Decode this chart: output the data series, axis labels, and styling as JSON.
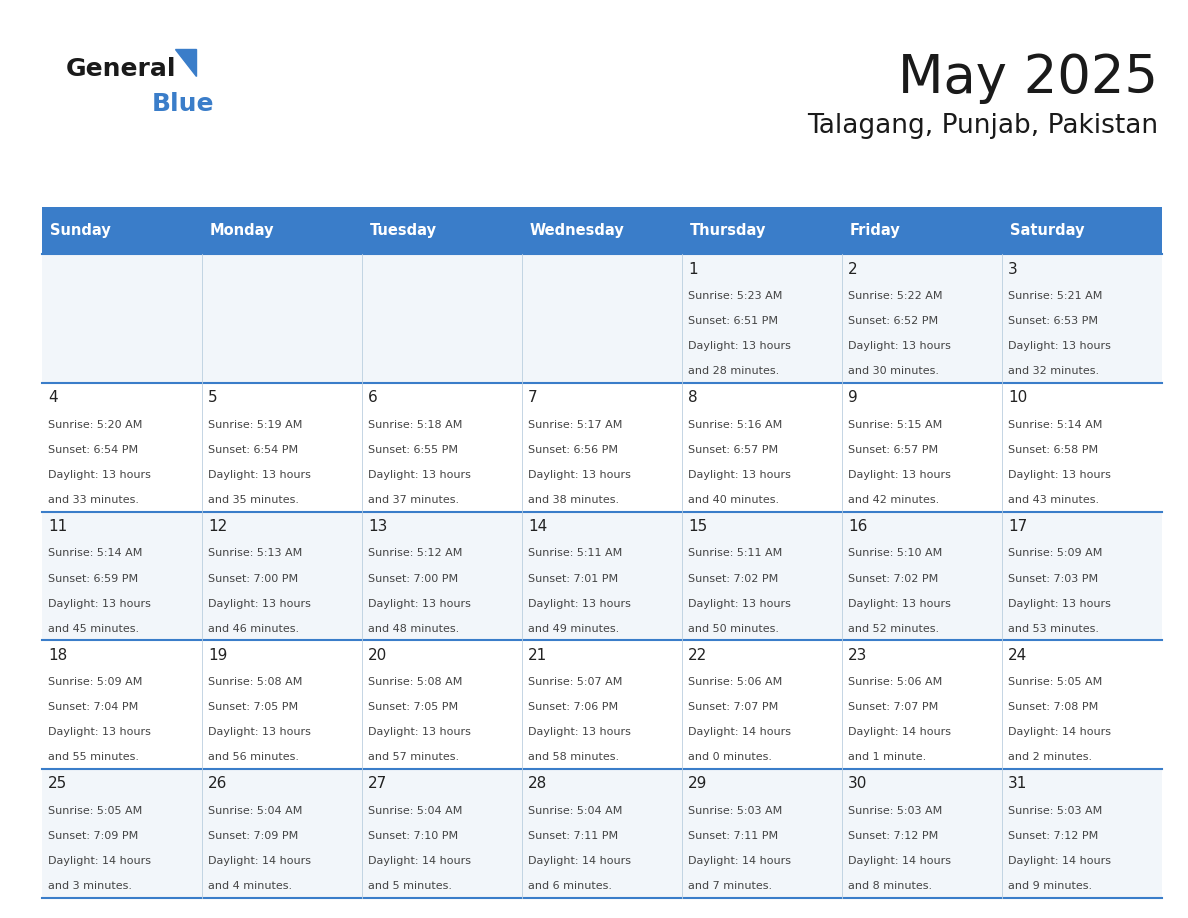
{
  "title": "May 2025",
  "subtitle": "Talagang, Punjab, Pakistan",
  "header_bg_color": "#3A7DC9",
  "header_text_color": "#FFFFFF",
  "cell_text_color": "#444444",
  "day_number_color": "#222222",
  "separator_color": "#3A7DC9",
  "logo_general_color": "#1a1a1a",
  "logo_blue_color": "#3A7DC9",
  "title_color": "#1a1a1a",
  "days_of_week": [
    "Sunday",
    "Monday",
    "Tuesday",
    "Wednesday",
    "Thursday",
    "Friday",
    "Saturday"
  ],
  "calendar_data": [
    [
      {
        "day": "",
        "sunrise": "",
        "sunset": "",
        "daylight_line1": "",
        "daylight_line2": ""
      },
      {
        "day": "",
        "sunrise": "",
        "sunset": "",
        "daylight_line1": "",
        "daylight_line2": ""
      },
      {
        "day": "",
        "sunrise": "",
        "sunset": "",
        "daylight_line1": "",
        "daylight_line2": ""
      },
      {
        "day": "",
        "sunrise": "",
        "sunset": "",
        "daylight_line1": "",
        "daylight_line2": ""
      },
      {
        "day": "1",
        "sunrise": "Sunrise: 5:23 AM",
        "sunset": "Sunset: 6:51 PM",
        "daylight_line1": "Daylight: 13 hours",
        "daylight_line2": "and 28 minutes."
      },
      {
        "day": "2",
        "sunrise": "Sunrise: 5:22 AM",
        "sunset": "Sunset: 6:52 PM",
        "daylight_line1": "Daylight: 13 hours",
        "daylight_line2": "and 30 minutes."
      },
      {
        "day": "3",
        "sunrise": "Sunrise: 5:21 AM",
        "sunset": "Sunset: 6:53 PM",
        "daylight_line1": "Daylight: 13 hours",
        "daylight_line2": "and 32 minutes."
      }
    ],
    [
      {
        "day": "4",
        "sunrise": "Sunrise: 5:20 AM",
        "sunset": "Sunset: 6:54 PM",
        "daylight_line1": "Daylight: 13 hours",
        "daylight_line2": "and 33 minutes."
      },
      {
        "day": "5",
        "sunrise": "Sunrise: 5:19 AM",
        "sunset": "Sunset: 6:54 PM",
        "daylight_line1": "Daylight: 13 hours",
        "daylight_line2": "and 35 minutes."
      },
      {
        "day": "6",
        "sunrise": "Sunrise: 5:18 AM",
        "sunset": "Sunset: 6:55 PM",
        "daylight_line1": "Daylight: 13 hours",
        "daylight_line2": "and 37 minutes."
      },
      {
        "day": "7",
        "sunrise": "Sunrise: 5:17 AM",
        "sunset": "Sunset: 6:56 PM",
        "daylight_line1": "Daylight: 13 hours",
        "daylight_line2": "and 38 minutes."
      },
      {
        "day": "8",
        "sunrise": "Sunrise: 5:16 AM",
        "sunset": "Sunset: 6:57 PM",
        "daylight_line1": "Daylight: 13 hours",
        "daylight_line2": "and 40 minutes."
      },
      {
        "day": "9",
        "sunrise": "Sunrise: 5:15 AM",
        "sunset": "Sunset: 6:57 PM",
        "daylight_line1": "Daylight: 13 hours",
        "daylight_line2": "and 42 minutes."
      },
      {
        "day": "10",
        "sunrise": "Sunrise: 5:14 AM",
        "sunset": "Sunset: 6:58 PM",
        "daylight_line1": "Daylight: 13 hours",
        "daylight_line2": "and 43 minutes."
      }
    ],
    [
      {
        "day": "11",
        "sunrise": "Sunrise: 5:14 AM",
        "sunset": "Sunset: 6:59 PM",
        "daylight_line1": "Daylight: 13 hours",
        "daylight_line2": "and 45 minutes."
      },
      {
        "day": "12",
        "sunrise": "Sunrise: 5:13 AM",
        "sunset": "Sunset: 7:00 PM",
        "daylight_line1": "Daylight: 13 hours",
        "daylight_line2": "and 46 minutes."
      },
      {
        "day": "13",
        "sunrise": "Sunrise: 5:12 AM",
        "sunset": "Sunset: 7:00 PM",
        "daylight_line1": "Daylight: 13 hours",
        "daylight_line2": "and 48 minutes."
      },
      {
        "day": "14",
        "sunrise": "Sunrise: 5:11 AM",
        "sunset": "Sunset: 7:01 PM",
        "daylight_line1": "Daylight: 13 hours",
        "daylight_line2": "and 49 minutes."
      },
      {
        "day": "15",
        "sunrise": "Sunrise: 5:11 AM",
        "sunset": "Sunset: 7:02 PM",
        "daylight_line1": "Daylight: 13 hours",
        "daylight_line2": "and 50 minutes."
      },
      {
        "day": "16",
        "sunrise": "Sunrise: 5:10 AM",
        "sunset": "Sunset: 7:02 PM",
        "daylight_line1": "Daylight: 13 hours",
        "daylight_line2": "and 52 minutes."
      },
      {
        "day": "17",
        "sunrise": "Sunrise: 5:09 AM",
        "sunset": "Sunset: 7:03 PM",
        "daylight_line1": "Daylight: 13 hours",
        "daylight_line2": "and 53 minutes."
      }
    ],
    [
      {
        "day": "18",
        "sunrise": "Sunrise: 5:09 AM",
        "sunset": "Sunset: 7:04 PM",
        "daylight_line1": "Daylight: 13 hours",
        "daylight_line2": "and 55 minutes."
      },
      {
        "day": "19",
        "sunrise": "Sunrise: 5:08 AM",
        "sunset": "Sunset: 7:05 PM",
        "daylight_line1": "Daylight: 13 hours",
        "daylight_line2": "and 56 minutes."
      },
      {
        "day": "20",
        "sunrise": "Sunrise: 5:08 AM",
        "sunset": "Sunset: 7:05 PM",
        "daylight_line1": "Daylight: 13 hours",
        "daylight_line2": "and 57 minutes."
      },
      {
        "day": "21",
        "sunrise": "Sunrise: 5:07 AM",
        "sunset": "Sunset: 7:06 PM",
        "daylight_line1": "Daylight: 13 hours",
        "daylight_line2": "and 58 minutes."
      },
      {
        "day": "22",
        "sunrise": "Sunrise: 5:06 AM",
        "sunset": "Sunset: 7:07 PM",
        "daylight_line1": "Daylight: 14 hours",
        "daylight_line2": "and 0 minutes."
      },
      {
        "day": "23",
        "sunrise": "Sunrise: 5:06 AM",
        "sunset": "Sunset: 7:07 PM",
        "daylight_line1": "Daylight: 14 hours",
        "daylight_line2": "and 1 minute."
      },
      {
        "day": "24",
        "sunrise": "Sunrise: 5:05 AM",
        "sunset": "Sunset: 7:08 PM",
        "daylight_line1": "Daylight: 14 hours",
        "daylight_line2": "and 2 minutes."
      }
    ],
    [
      {
        "day": "25",
        "sunrise": "Sunrise: 5:05 AM",
        "sunset": "Sunset: 7:09 PM",
        "daylight_line1": "Daylight: 14 hours",
        "daylight_line2": "and 3 minutes."
      },
      {
        "day": "26",
        "sunrise": "Sunrise: 5:04 AM",
        "sunset": "Sunset: 7:09 PM",
        "daylight_line1": "Daylight: 14 hours",
        "daylight_line2": "and 4 minutes."
      },
      {
        "day": "27",
        "sunrise": "Sunrise: 5:04 AM",
        "sunset": "Sunset: 7:10 PM",
        "daylight_line1": "Daylight: 14 hours",
        "daylight_line2": "and 5 minutes."
      },
      {
        "day": "28",
        "sunrise": "Sunrise: 5:04 AM",
        "sunset": "Sunset: 7:11 PM",
        "daylight_line1": "Daylight: 14 hours",
        "daylight_line2": "and 6 minutes."
      },
      {
        "day": "29",
        "sunrise": "Sunrise: 5:03 AM",
        "sunset": "Sunset: 7:11 PM",
        "daylight_line1": "Daylight: 14 hours",
        "daylight_line2": "and 7 minutes."
      },
      {
        "day": "30",
        "sunrise": "Sunrise: 5:03 AM",
        "sunset": "Sunset: 7:12 PM",
        "daylight_line1": "Daylight: 14 hours",
        "daylight_line2": "and 8 minutes."
      },
      {
        "day": "31",
        "sunrise": "Sunrise: 5:03 AM",
        "sunset": "Sunset: 7:12 PM",
        "daylight_line1": "Daylight: 14 hours",
        "daylight_line2": "and 9 minutes."
      }
    ]
  ],
  "fig_width": 11.88,
  "fig_height": 9.18,
  "dpi": 100
}
